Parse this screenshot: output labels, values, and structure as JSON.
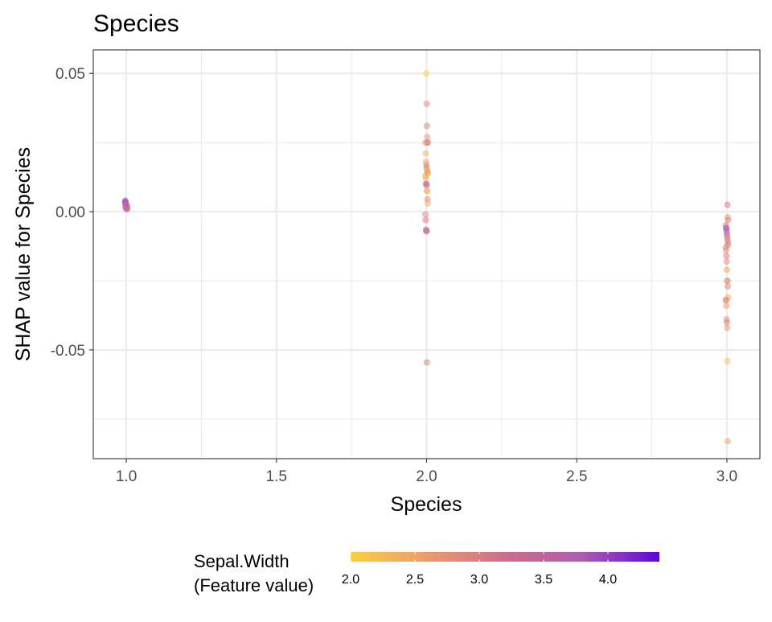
{
  "chart_data": {
    "type": "scatter",
    "title": "Species",
    "xlabel": "Species",
    "ylabel": "SHAP value for Species",
    "xlim": [
      0.89,
      3.11
    ],
    "ylim": [
      -0.0893,
      0.0585
    ],
    "x_ticks": [
      1.0,
      1.5,
      2.0,
      2.5,
      3.0
    ],
    "x_tick_labels": [
      "1.0",
      "1.5",
      "2.0",
      "2.5",
      "3.0"
    ],
    "y_ticks": [
      0.05,
      0.0,
      -0.05
    ],
    "y_tick_labels": [
      "0.05",
      "0.00",
      "-0.05"
    ],
    "grid": true,
    "color_legend": {
      "title_line1": "Sepal.Width",
      "title_line2": "(Feature value)",
      "position": "bottom",
      "domain": [
        2.0,
        4.4
      ],
      "ticks": [
        2.0,
        2.5,
        3.0,
        3.5,
        4.0
      ],
      "tick_labels": [
        "2.0",
        "2.5",
        "3.0",
        "3.5",
        "4.0"
      ],
      "colors": [
        "#fdcf3f",
        "#ea9b6e",
        "#cc6e8a",
        "#b25bb0",
        "#5f05da"
      ]
    },
    "point_opacity": 0.5,
    "points": [
      {
        "x": 1.0,
        "y": 0.004,
        "c": 3.9
      },
      {
        "x": 1.0,
        "y": 0.0035,
        "c": 4.1
      },
      {
        "x": 1.0,
        "y": 0.003,
        "c": 3.7
      },
      {
        "x": 1.0,
        "y": 0.0025,
        "c": 3.5
      },
      {
        "x": 1.0,
        "y": 0.002,
        "c": 3.4
      },
      {
        "x": 1.0,
        "y": 0.0015,
        "c": 3.2
      },
      {
        "x": 1.0,
        "y": 0.001,
        "c": 3.0
      },
      {
        "x": 1.0,
        "y": 0.001,
        "c": 3.6
      },
      {
        "x": 1.0,
        "y": 0.002,
        "c": 3.1
      },
      {
        "x": 1.0,
        "y": 0.003,
        "c": 3.8
      },
      {
        "x": 1.0,
        "y": 0.0018,
        "c": 3.3
      },
      {
        "x": 1.0,
        "y": 0.0012,
        "c": 3.4
      },
      {
        "x": 2.0,
        "y": 0.05,
        "c": 2.0
      },
      {
        "x": 2.0,
        "y": 0.039,
        "c": 2.8
      },
      {
        "x": 2.0,
        "y": 0.031,
        "c": 2.9
      },
      {
        "x": 2.0,
        "y": 0.027,
        "c": 2.7
      },
      {
        "x": 2.0,
        "y": 0.025,
        "c": 2.9
      },
      {
        "x": 2.0,
        "y": 0.025,
        "c": 3.0
      },
      {
        "x": 2.0,
        "y": 0.025,
        "c": 2.7
      },
      {
        "x": 2.0,
        "y": 0.021,
        "c": 2.3
      },
      {
        "x": 2.0,
        "y": 0.018,
        "c": 2.5
      },
      {
        "x": 2.0,
        "y": 0.017,
        "c": 2.6
      },
      {
        "x": 2.0,
        "y": 0.016,
        "c": 3.1
      },
      {
        "x": 2.0,
        "y": 0.015,
        "c": 2.2
      },
      {
        "x": 2.0,
        "y": 0.015,
        "c": 2.4
      },
      {
        "x": 2.0,
        "y": 0.014,
        "c": 2.0
      },
      {
        "x": 2.0,
        "y": 0.014,
        "c": 2.8
      },
      {
        "x": 2.0,
        "y": 0.013,
        "c": 2.5
      },
      {
        "x": 2.0,
        "y": 0.012,
        "c": 2.3
      },
      {
        "x": 2.0,
        "y": 0.01,
        "c": 3.2
      },
      {
        "x": 2.0,
        "y": 0.01,
        "c": 3.3
      },
      {
        "x": 2.0,
        "y": 0.0095,
        "c": 3.0
      },
      {
        "x": 2.0,
        "y": 0.0075,
        "c": 2.2
      },
      {
        "x": 2.0,
        "y": 0.0075,
        "c": 2.4
      },
      {
        "x": 2.0,
        "y": 0.0045,
        "c": 2.9
      },
      {
        "x": 2.0,
        "y": 0.003,
        "c": 2.4
      },
      {
        "x": 2.0,
        "y": -0.001,
        "c": 2.8
      },
      {
        "x": 2.0,
        "y": -0.003,
        "c": 3.0
      },
      {
        "x": 2.0,
        "y": -0.0065,
        "c": 3.2
      },
      {
        "x": 2.0,
        "y": -0.007,
        "c": 3.1
      },
      {
        "x": 2.0,
        "y": -0.007,
        "c": 3.4
      },
      {
        "x": 2.0,
        "y": -0.0545,
        "c": 3.0
      },
      {
        "x": 3.0,
        "y": 0.0025,
        "c": 3.1
      },
      {
        "x": 3.0,
        "y": -0.002,
        "c": 2.6
      },
      {
        "x": 3.0,
        "y": -0.003,
        "c": 3.0
      },
      {
        "x": 3.0,
        "y": -0.005,
        "c": 3.2
      },
      {
        "x": 3.0,
        "y": -0.006,
        "c": 3.3
      },
      {
        "x": 3.0,
        "y": -0.006,
        "c": 3.6
      },
      {
        "x": 3.0,
        "y": -0.007,
        "c": 3.8
      },
      {
        "x": 3.0,
        "y": -0.008,
        "c": 3.4
      },
      {
        "x": 3.0,
        "y": -0.009,
        "c": 3.2
      },
      {
        "x": 3.0,
        "y": -0.01,
        "c": 3.0
      },
      {
        "x": 3.0,
        "y": -0.011,
        "c": 2.9
      },
      {
        "x": 3.0,
        "y": -0.012,
        "c": 3.1
      },
      {
        "x": 3.0,
        "y": -0.013,
        "c": 2.8
      },
      {
        "x": 3.0,
        "y": -0.014,
        "c": 2.7
      },
      {
        "x": 3.0,
        "y": -0.016,
        "c": 3.0
      },
      {
        "x": 3.0,
        "y": -0.018,
        "c": 2.8
      },
      {
        "x": 3.0,
        "y": -0.021,
        "c": 2.5
      },
      {
        "x": 3.0,
        "y": -0.025,
        "c": 2.6
      },
      {
        "x": 3.0,
        "y": -0.025,
        "c": 2.7
      },
      {
        "x": 3.0,
        "y": -0.027,
        "c": 2.9
      },
      {
        "x": 3.0,
        "y": -0.031,
        "c": 2.5
      },
      {
        "x": 3.0,
        "y": -0.032,
        "c": 2.7
      },
      {
        "x": 3.0,
        "y": -0.032,
        "c": 2.8
      },
      {
        "x": 3.0,
        "y": -0.034,
        "c": 2.6
      },
      {
        "x": 3.0,
        "y": -0.039,
        "c": 2.8
      },
      {
        "x": 3.0,
        "y": -0.04,
        "c": 2.9
      },
      {
        "x": 3.0,
        "y": -0.042,
        "c": 2.7
      },
      {
        "x": 3.0,
        "y": -0.054,
        "c": 2.2
      },
      {
        "x": 3.0,
        "y": -0.083,
        "c": 2.5
      }
    ]
  }
}
